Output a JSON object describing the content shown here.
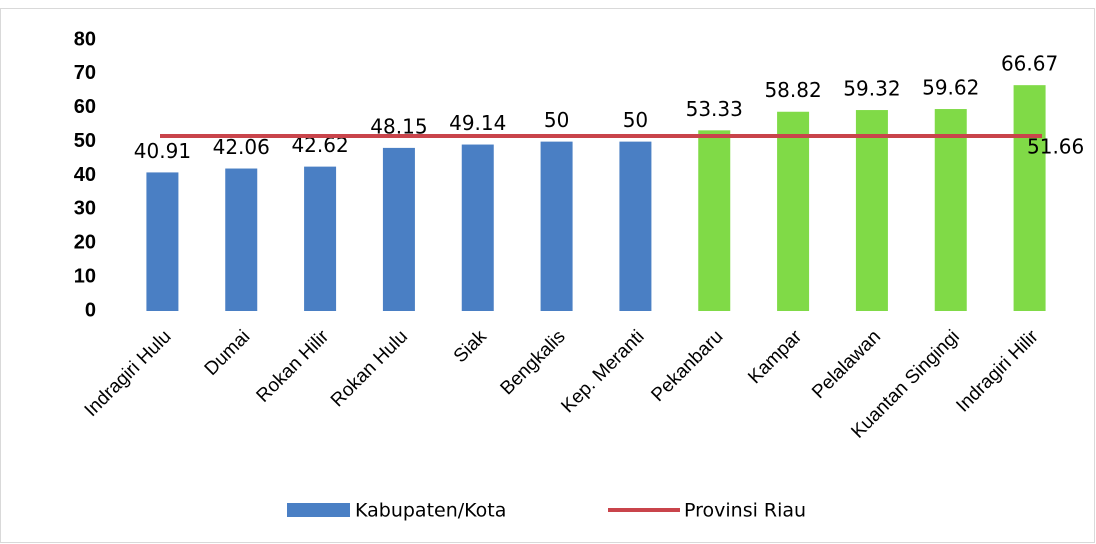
{
  "chart_data": {
    "type": "bar",
    "categories": [
      "Indragiri Hulu",
      "Dumai",
      "Rokan Hilir",
      "Rokan Hulu",
      "Siak",
      "Bengkalis",
      "Kep. Meranti",
      "Pekanbaru",
      "Kampar",
      "Pelalawan",
      "Kuantan Singingi",
      "Indragiri Hilir"
    ],
    "series": [
      {
        "name": "Kabupaten/Kota",
        "color": "#4a7fc4",
        "colors": [
          "#4a7fc4",
          "#4a7fc4",
          "#4a7fc4",
          "#4a7fc4",
          "#4a7fc4",
          "#4a7fc4",
          "#4a7fc4",
          "#80da47",
          "#80da47",
          "#80da47",
          "#80da47",
          "#80da47"
        ],
        "values": [
          40.91,
          42.06,
          42.62,
          48.15,
          49.14,
          50,
          50,
          53.33,
          58.82,
          59.32,
          59.62,
          66.67
        ]
      }
    ],
    "reference_line": {
      "name": "Provinsi Riau",
      "value": 51.66,
      "color": "#c9444b"
    },
    "ylim": [
      0,
      80
    ],
    "yticks": [
      0,
      10,
      20,
      30,
      40,
      50,
      60,
      70,
      80
    ],
    "legend": "bottom"
  }
}
